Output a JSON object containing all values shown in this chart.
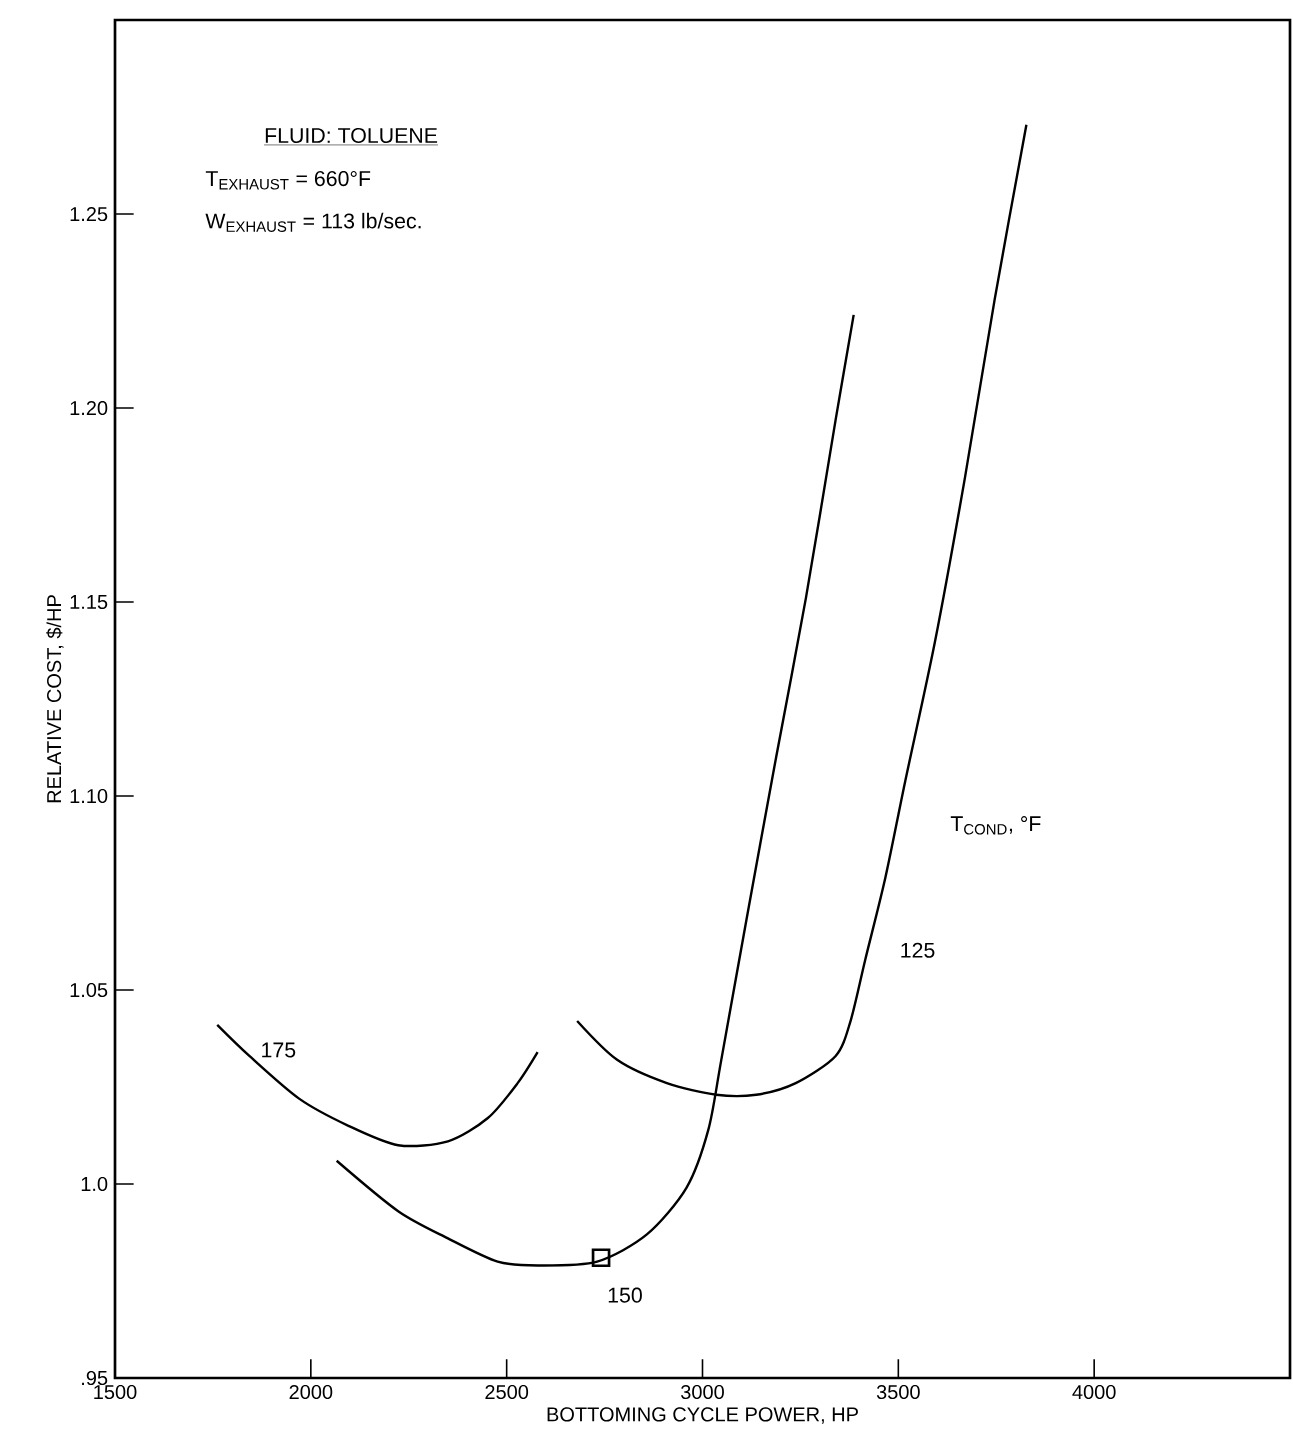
{
  "chart_data": {
    "type": "line",
    "xlabel": "BOTTOMING CYCLE POWER, HP",
    "ylabel": "RELATIVE COST, $/HP",
    "xlim": [
      1500,
      4500
    ],
    "ylim": [
      0.95,
      1.3
    ],
    "xticks": [
      1500,
      2000,
      2500,
      3000,
      3500,
      4000
    ],
    "yticks": [
      {
        "value": 0.95,
        "label": ".95"
      },
      {
        "value": 1.0,
        "label": "1.0"
      },
      1.05,
      {
        "value": 1.1,
        "label": "1.10"
      },
      1.15,
      {
        "value": 1.2,
        "label": "1.20"
      },
      1.25
    ],
    "grid": false,
    "marker": "none",
    "line_style": "solid",
    "series": [
      {
        "color": "#000000",
        "x": [
          1761,
          1843,
          1970,
          2096,
          2223,
          2350,
          2452,
          2528,
          2579
        ],
        "values": [
          1.041,
          1.033,
          1.022,
          1.015,
          1.01,
          1.011,
          1.017,
          1.026,
          1.034
        ]
      },
      {
        "color": "#000000",
        "x": [
          2066,
          2223,
          2350,
          2477,
          2579,
          2731,
          2858,
          2959,
          3015,
          3048,
          3112,
          3188,
          3264,
          3340,
          3386
        ],
        "values": [
          1.006,
          0.993,
          0.986,
          0.98,
          0.979,
          0.98,
          0.987,
          0.999,
          1.014,
          1.032,
          1.068,
          1.11,
          1.151,
          1.197,
          1.224
        ]
      },
      {
        "color": "#000000",
        "x": [
          2680,
          2782,
          2909,
          3035,
          3137,
          3238,
          3340,
          3378,
          3416,
          3467,
          3518,
          3594,
          3670,
          3746,
          3827
        ],
        "values": [
          1.042,
          1.032,
          1.026,
          1.023,
          1.023,
          1.026,
          1.033,
          1.042,
          1.058,
          1.079,
          1.104,
          1.14,
          1.182,
          1.228,
          1.273
        ]
      },
      {
        "type": "scatter",
        "marker": "square",
        "color": "#000000",
        "x": [
          2741
        ],
        "values": [
          0.981
        ]
      }
    ],
    "annotations": [
      "FLUID: TOLUENE",
      "T$_{EXHAUST}$ = 660°F",
      "W$_{EXHAUST}$ = 113 lb/sec.",
      "175",
      "150",
      "125",
      "T$_{COND}$, °F"
    ]
  }
}
